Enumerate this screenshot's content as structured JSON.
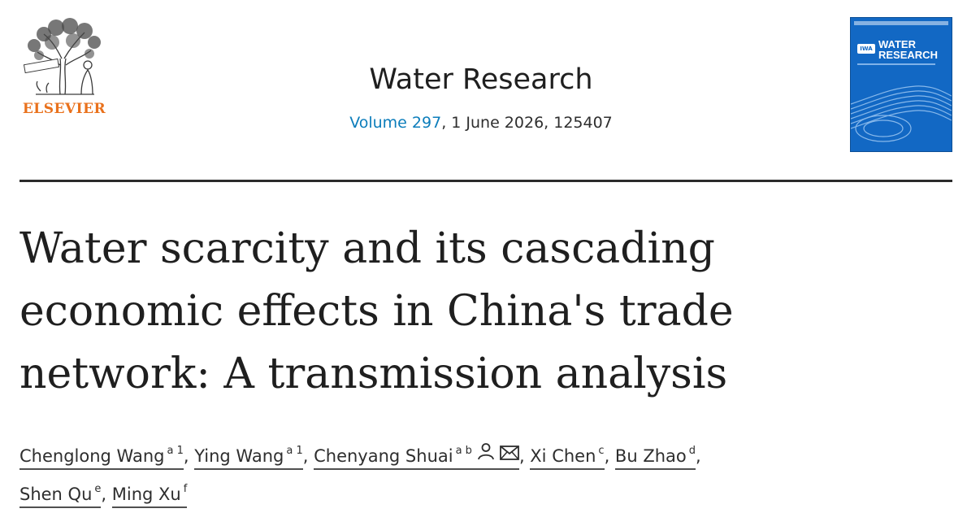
{
  "publisher": {
    "name": "ELSEVIER",
    "logo_icon": "elsevier-tree-icon",
    "brand_color": "#e9711c"
  },
  "journal": {
    "title": "Water Research",
    "volume_label": "Volume 297",
    "issue_details": ", 1 June 2026, 125407",
    "link_color": "#0c7dbb"
  },
  "cover": {
    "badge": "IWA",
    "title_line1": "WATER",
    "title_line2": "RESEARCH",
    "background_color": "#1268c4"
  },
  "article": {
    "title_lines": [
      "Water scarcity and its cascading",
      "economic effects in China's trade",
      "network: A transmission analysis"
    ]
  },
  "authors": [
    {
      "name": "Chenglong Wang",
      "affil": "a 1",
      "sep": ", "
    },
    {
      "name": "Ying Wang",
      "affil": "a 1",
      "sep": ", "
    },
    {
      "name": "Chenyang Shuai",
      "affil": "a b",
      "sep": ", ",
      "icons": [
        "person-icon",
        "envelope-icon"
      ]
    },
    {
      "name": "Xi Chen",
      "affil": "c",
      "sep": ", "
    },
    {
      "name": "Bu Zhao",
      "affil": "d",
      "sep": ","
    },
    {
      "name": "Shen Qu",
      "affil": "e",
      "sep": ", "
    },
    {
      "name": "Ming Xu",
      "affil": "f",
      "sep": ""
    }
  ]
}
